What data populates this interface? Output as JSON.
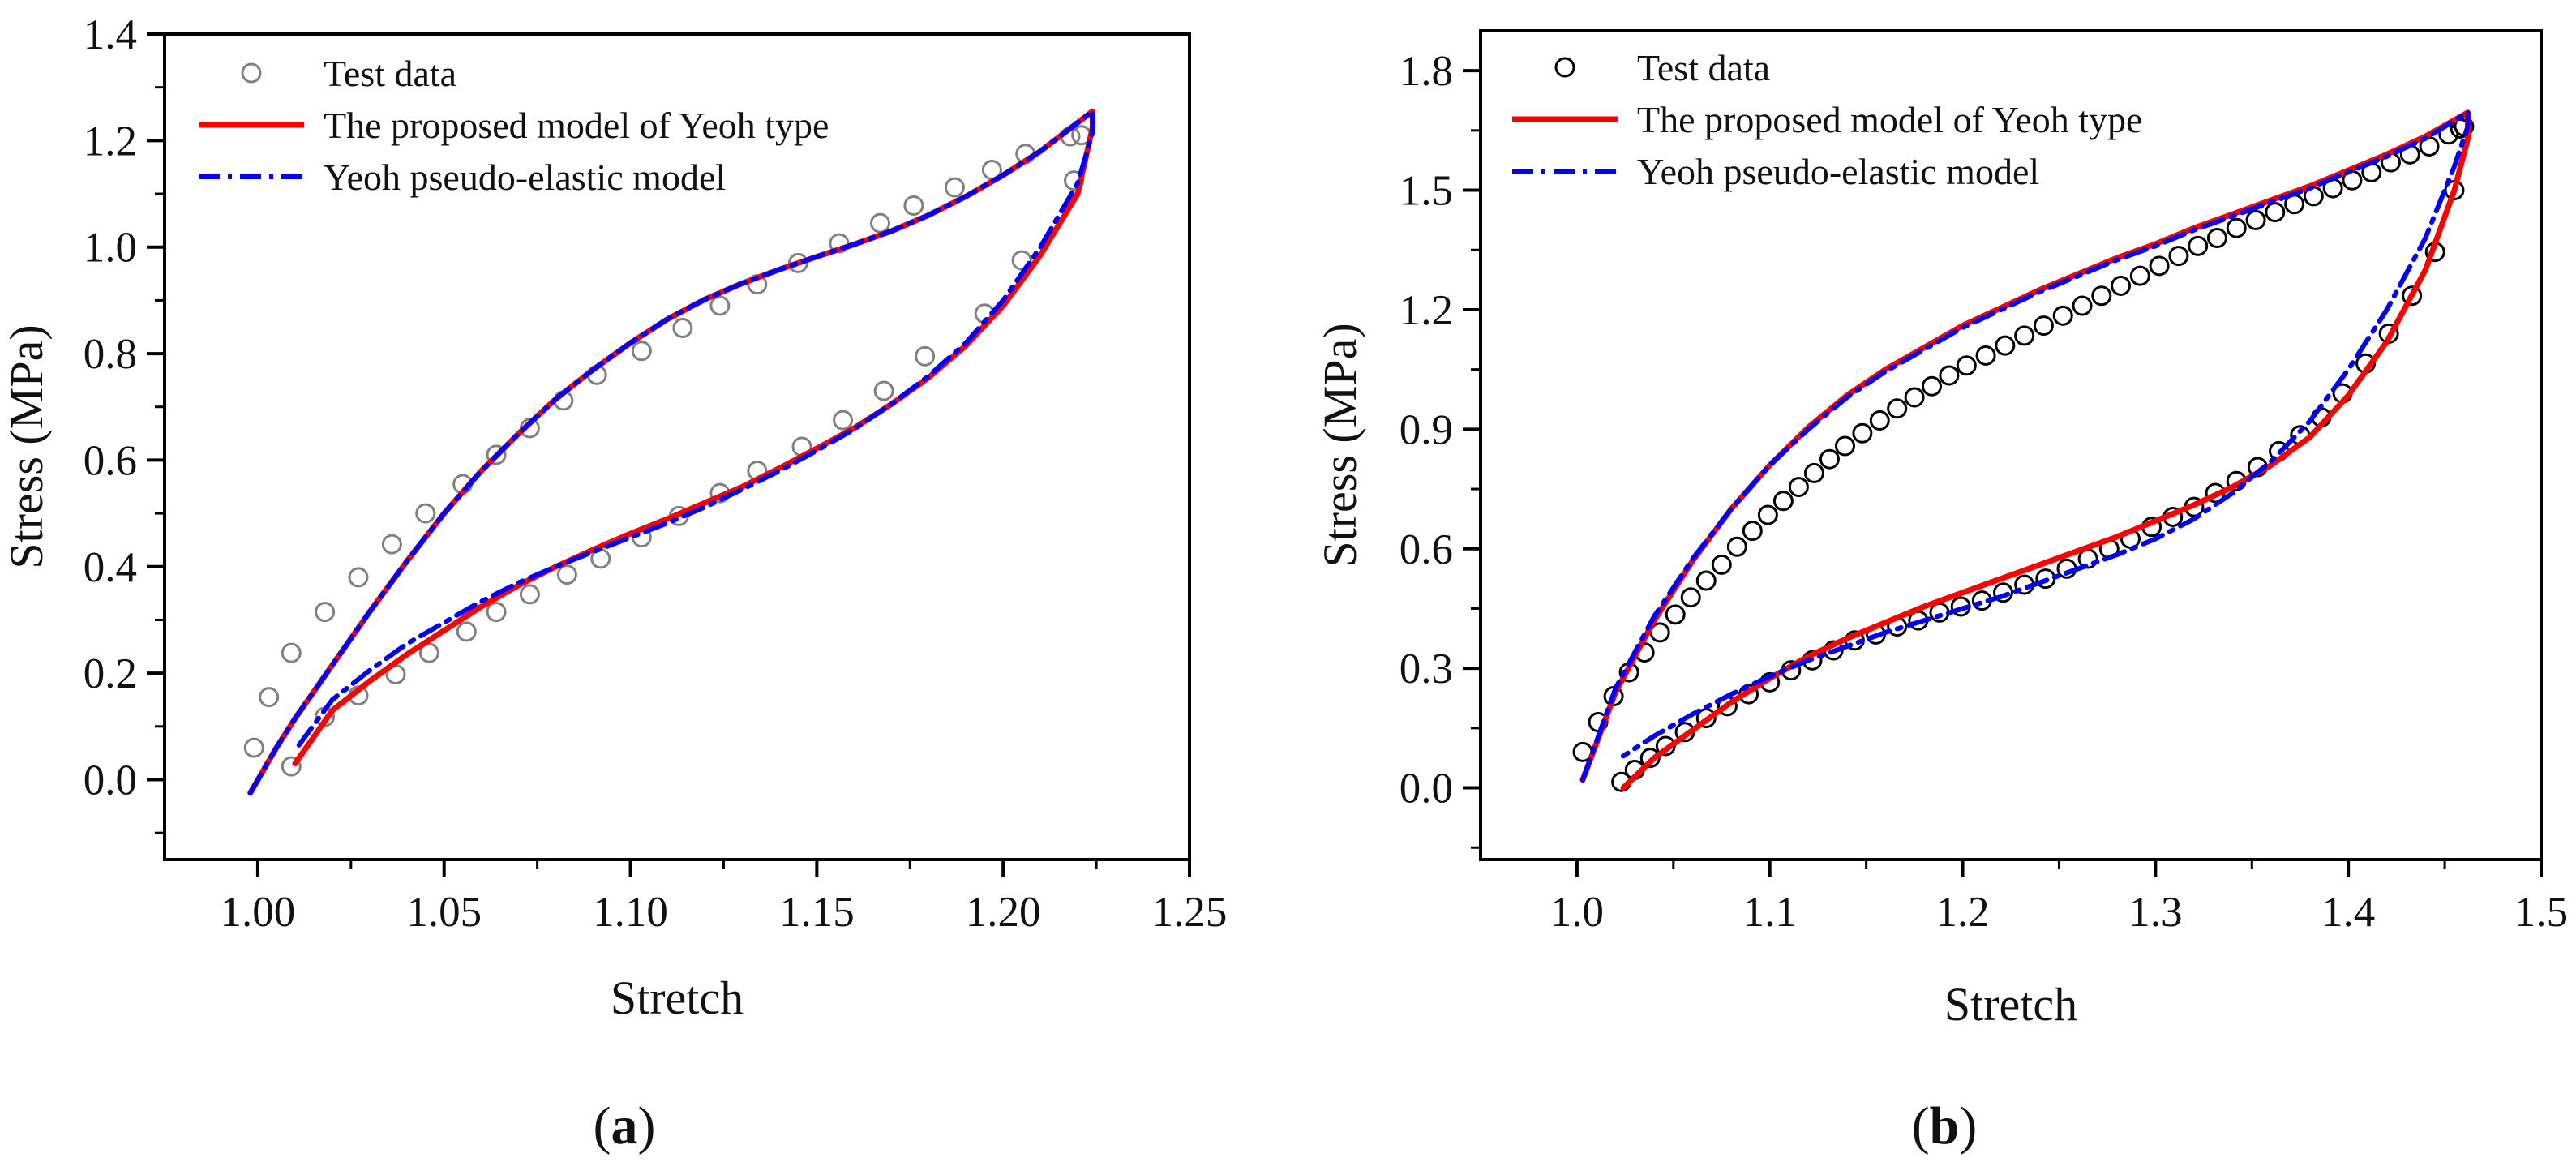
{
  "chart_data": [
    {
      "type": "line",
      "panel": "(a)",
      "panel_letter": "a",
      "xlabel": "Stretch",
      "ylabel": "Stress (MPa)",
      "xlim": [
        0.975,
        1.25
      ],
      "ylim": [
        -0.15,
        1.4
      ],
      "xticks": [
        "1.00",
        "1.05",
        "1.10",
        "1.15",
        "1.20",
        "1.25"
      ],
      "xtick_values": [
        1.0,
        1.05,
        1.1,
        1.15,
        1.2,
        1.25
      ],
      "yticks": [
        "0.0",
        "0.2",
        "0.4",
        "0.6",
        "0.8",
        "1.0",
        "1.2",
        "1.4"
      ],
      "ytick_values": [
        0.0,
        0.2,
        0.4,
        0.6,
        0.8,
        1.0,
        1.2,
        1.4
      ],
      "legend": [
        "Test data",
        "The proposed model of Yeoh type",
        "Yeoh pseudo-elastic model"
      ],
      "legend_position": "top-left",
      "colors": {
        "test": "#808080",
        "proposed": "#ff0000",
        "yeoh": "#0000ff"
      },
      "series": [
        {
          "name": "Test data",
          "style": "open-circle",
          "x": [
            0.999,
            1.003,
            1.009,
            1.018,
            1.027,
            1.036,
            1.045,
            1.055,
            1.064,
            1.073,
            1.082,
            1.091,
            1.103,
            1.114,
            1.124,
            1.134,
            1.145,
            1.156,
            1.167,
            1.176,
            1.187,
            1.197,
            1.206,
            1.218,
            1.221,
            1.219,
            1.205,
            1.195,
            1.179,
            1.168,
            1.157,
            1.146,
            1.134,
            1.124,
            1.113,
            1.103,
            1.092,
            1.083,
            1.073,
            1.064,
            1.056,
            1.046,
            1.037,
            1.027,
            1.018,
            1.009
          ],
          "y": [
            0.06,
            0.155,
            0.238,
            0.315,
            0.38,
            0.442,
            0.5,
            0.555,
            0.61,
            0.66,
            0.712,
            0.76,
            0.805,
            0.848,
            0.89,
            0.93,
            0.97,
            1.007,
            1.045,
            1.078,
            1.112,
            1.145,
            1.175,
            1.208,
            1.21,
            1.125,
            0.975,
            0.875,
            0.795,
            0.73,
            0.675,
            0.625,
            0.58,
            0.538,
            0.495,
            0.455,
            0.415,
            0.385,
            0.348,
            0.315,
            0.278,
            0.238,
            0.198,
            0.158,
            0.118,
            0.025
          ]
        },
        {
          "name": "The proposed model of Yeoh type",
          "style": "solid",
          "x": [
            0.998,
            1.005,
            1.01,
            1.02,
            1.03,
            1.04,
            1.05,
            1.06,
            1.07,
            1.08,
            1.09,
            1.1,
            1.11,
            1.12,
            1.13,
            1.14,
            1.15,
            1.16,
            1.17,
            1.18,
            1.19,
            1.2,
            1.21,
            1.224,
            1.224,
            1.22,
            1.21,
            1.2,
            1.19,
            1.18,
            1.17,
            1.16,
            1.15,
            1.14,
            1.13,
            1.12,
            1.11,
            1.1,
            1.09,
            1.08,
            1.07,
            1.06,
            1.05,
            1.04,
            1.03,
            1.02,
            1.01
          ],
          "y": [
            -0.025,
            0.06,
            0.115,
            0.215,
            0.315,
            0.41,
            0.5,
            0.58,
            0.65,
            0.715,
            0.77,
            0.82,
            0.865,
            0.902,
            0.932,
            0.958,
            0.982,
            1.005,
            1.03,
            1.06,
            1.095,
            1.135,
            1.18,
            1.255,
            1.225,
            1.1,
            0.985,
            0.89,
            0.815,
            0.755,
            0.705,
            0.66,
            0.622,
            0.585,
            0.55,
            0.52,
            0.49,
            0.462,
            0.432,
            0.4,
            0.365,
            0.325,
            0.28,
            0.235,
            0.185,
            0.13,
            0.03
          ]
        },
        {
          "name": "Yeoh pseudo-elastic model",
          "style": "dash-dot",
          "x": [
            0.998,
            1.005,
            1.01,
            1.02,
            1.03,
            1.04,
            1.05,
            1.06,
            1.07,
            1.08,
            1.09,
            1.1,
            1.11,
            1.12,
            1.13,
            1.14,
            1.15,
            1.16,
            1.17,
            1.18,
            1.19,
            1.2,
            1.21,
            1.224,
            1.224,
            1.22,
            1.21,
            1.2,
            1.19,
            1.18,
            1.17,
            1.16,
            1.15,
            1.14,
            1.13,
            1.12,
            1.11,
            1.1,
            1.09,
            1.08,
            1.07,
            1.06,
            1.05,
            1.04,
            1.03,
            1.02,
            1.01
          ],
          "y": [
            -0.025,
            0.06,
            0.115,
            0.215,
            0.315,
            0.41,
            0.5,
            0.58,
            0.65,
            0.715,
            0.77,
            0.82,
            0.865,
            0.902,
            0.932,
            0.958,
            0.982,
            1.005,
            1.03,
            1.06,
            1.095,
            1.135,
            1.18,
            1.255,
            1.215,
            1.12,
            1.0,
            0.9,
            0.82,
            0.758,
            0.705,
            0.658,
            0.618,
            0.58,
            0.545,
            0.512,
            0.482,
            0.455,
            0.428,
            0.4,
            0.37,
            0.335,
            0.295,
            0.255,
            0.205,
            0.15,
            0.055
          ]
        }
      ]
    },
    {
      "type": "line",
      "panel": "(b)",
      "panel_letter": "b",
      "xlabel": "Stretch",
      "ylabel": "Stress (MPa)",
      "xlim": [
        0.95,
        1.5
      ],
      "ylim": [
        -0.18,
        1.9
      ],
      "xticks": [
        "1.0",
        "1.1",
        "1.2",
        "1.3",
        "1.4",
        "1.5"
      ],
      "xtick_values": [
        1.0,
        1.1,
        1.2,
        1.3,
        1.4,
        1.5
      ],
      "yticks": [
        "0.0",
        "0.3",
        "0.6",
        "0.9",
        "1.2",
        "1.5",
        "1.8"
      ],
      "ytick_values": [
        0.0,
        0.3,
        0.6,
        0.9,
        1.2,
        1.5,
        1.8
      ],
      "legend": [
        "Test data",
        "The proposed model of Yeoh type",
        "Yeoh pseudo-elastic model"
      ],
      "legend_position": "top-left",
      "colors": {
        "test": "#000000",
        "proposed": "#ff0000",
        "yeoh": "#0000ff"
      },
      "series": [
        {
          "name": "Test data",
          "style": "open-circle",
          "x": [
            1.003,
            1.011,
            1.019,
            1.027,
            1.035,
            1.043,
            1.051,
            1.059,
            1.067,
            1.075,
            1.083,
            1.091,
            1.099,
            1.107,
            1.115,
            1.123,
            1.131,
            1.139,
            1.148,
            1.157,
            1.166,
            1.175,
            1.184,
            1.193,
            1.202,
            1.212,
            1.222,
            1.232,
            1.242,
            1.252,
            1.262,
            1.272,
            1.282,
            1.292,
            1.302,
            1.312,
            1.322,
            1.332,
            1.342,
            1.352,
            1.362,
            1.372,
            1.382,
            1.392,
            1.402,
            1.412,
            1.422,
            1.432,
            1.442,
            1.452,
            1.458,
            1.46,
            1.455,
            1.445,
            1.433,
            1.421,
            1.409,
            1.397,
            1.386,
            1.375,
            1.364,
            1.353,
            1.342,
            1.331,
            1.32,
            1.309,
            1.298,
            1.287,
            1.276,
            1.265,
            1.254,
            1.243,
            1.232,
            1.221,
            1.21,
            1.199,
            1.188,
            1.177,
            1.166,
            1.155,
            1.144,
            1.133,
            1.122,
            1.111,
            1.1,
            1.089,
            1.078,
            1.067,
            1.056,
            1.046,
            1.038,
            1.03,
            1.023
          ],
          "y": [
            0.09,
            0.165,
            0.23,
            0.29,
            0.34,
            0.39,
            0.435,
            0.478,
            0.52,
            0.56,
            0.605,
            0.645,
            0.685,
            0.72,
            0.755,
            0.79,
            0.825,
            0.858,
            0.89,
            0.922,
            0.952,
            0.98,
            1.008,
            1.035,
            1.06,
            1.085,
            1.11,
            1.135,
            1.16,
            1.185,
            1.21,
            1.235,
            1.26,
            1.285,
            1.31,
            1.335,
            1.36,
            1.38,
            1.405,
            1.425,
            1.445,
            1.465,
            1.485,
            1.505,
            1.525,
            1.545,
            1.57,
            1.59,
            1.61,
            1.64,
            1.655,
            1.66,
            1.5,
            1.345,
            1.235,
            1.14,
            1.065,
            0.99,
            0.93,
            0.885,
            0.845,
            0.805,
            0.77,
            0.74,
            0.705,
            0.68,
            0.655,
            0.625,
            0.6,
            0.575,
            0.55,
            0.525,
            0.51,
            0.49,
            0.47,
            0.455,
            0.44,
            0.42,
            0.405,
            0.385,
            0.37,
            0.345,
            0.32,
            0.295,
            0.265,
            0.235,
            0.205,
            0.175,
            0.14,
            0.105,
            0.075,
            0.045,
            0.015
          ]
        },
        {
          "name": "The proposed model of Yeoh type",
          "style": "solid",
          "x": [
            1.003,
            1.02,
            1.04,
            1.06,
            1.08,
            1.1,
            1.12,
            1.14,
            1.16,
            1.18,
            1.2,
            1.22,
            1.24,
            1.26,
            1.28,
            1.3,
            1.32,
            1.34,
            1.36,
            1.38,
            1.4,
            1.42,
            1.44,
            1.462,
            1.462,
            1.455,
            1.44,
            1.42,
            1.4,
            1.38,
            1.36,
            1.34,
            1.32,
            1.3,
            1.28,
            1.26,
            1.24,
            1.22,
            1.2,
            1.18,
            1.16,
            1.14,
            1.12,
            1.1,
            1.08,
            1.06,
            1.04,
            1.024
          ],
          "y": [
            0.02,
            0.24,
            0.42,
            0.57,
            0.7,
            0.81,
            0.905,
            0.985,
            1.05,
            1.105,
            1.16,
            1.205,
            1.25,
            1.29,
            1.33,
            1.365,
            1.405,
            1.44,
            1.475,
            1.51,
            1.55,
            1.59,
            1.635,
            1.695,
            1.63,
            1.5,
            1.3,
            1.12,
            0.985,
            0.88,
            0.81,
            0.755,
            0.71,
            0.67,
            0.63,
            0.595,
            0.56,
            0.525,
            0.49,
            0.455,
            0.415,
            0.375,
            0.33,
            0.275,
            0.215,
            0.145,
            0.075,
            0.0
          ]
        },
        {
          "name": "Yeoh pseudo-elastic model",
          "style": "dash-dot",
          "x": [
            1.003,
            1.02,
            1.04,
            1.06,
            1.08,
            1.1,
            1.12,
            1.14,
            1.16,
            1.18,
            1.2,
            1.22,
            1.24,
            1.26,
            1.28,
            1.3,
            1.32,
            1.34,
            1.36,
            1.38,
            1.4,
            1.42,
            1.44,
            1.462,
            1.462,
            1.455,
            1.44,
            1.42,
            1.4,
            1.38,
            1.36,
            1.34,
            1.32,
            1.3,
            1.28,
            1.26,
            1.24,
            1.22,
            1.2,
            1.18,
            1.16,
            1.14,
            1.12,
            1.1,
            1.08,
            1.06,
            1.04,
            1.024
          ],
          "y": [
            0.02,
            0.25,
            0.43,
            0.575,
            0.7,
            0.81,
            0.9,
            0.98,
            1.045,
            1.1,
            1.155,
            1.2,
            1.245,
            1.285,
            1.325,
            1.36,
            1.4,
            1.435,
            1.47,
            1.505,
            1.545,
            1.585,
            1.63,
            1.695,
            1.66,
            1.56,
            1.38,
            1.2,
            1.05,
            0.92,
            0.82,
            0.74,
            0.675,
            0.625,
            0.585,
            0.55,
            0.515,
            0.48,
            0.45,
            0.42,
            0.39,
            0.355,
            0.32,
            0.28,
            0.235,
            0.185,
            0.13,
            0.08
          ]
        }
      ]
    }
  ]
}
